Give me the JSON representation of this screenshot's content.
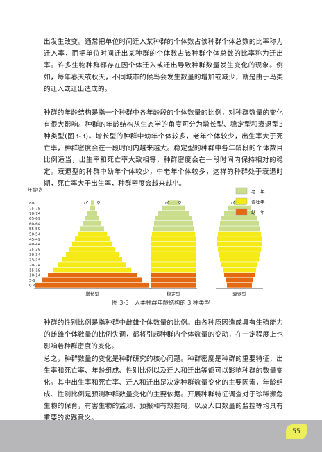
{
  "paragraphs": [
    "出发生改变。通常把单位时间迁入某种群的个体数占该种群个体总数的比率称为迁入率，而把单位时间迁出某种群的个体数占该种群个体总数的比率称为迁出率。许多生物种群都存在因个体迁入或迁出导致种群数量发生变化的现象。例如，每年春天或秋天，不同城市的候鸟会发生数量的增加或减少，就是由于鸟类的迁入或迁出造成的。",
    "种群的年龄结构是指一个种群中各年龄段的个体数量的比例，对种群数量的变化有很大影响。种群的年龄结构从生态学的角度可分为增长型、稳定型和衰退型3种类型(图3-3)。增长型的种群中幼年个体较多，老年个体较少，出生率大于死亡率，种群密度会在一段时间内越来越大。稳定型的种群中各年龄段的个体数目比例适当，出生率和死亡率大致相等，种群密度会在一段时间内保持相对的稳定。衰退型的种群中幼年个体较少，中老年个体较多，这样的种群处于衰退时期，死亡率大于出生率，种群密度会越来越小。",
    "种群的性别比例是指种群中雌雄个体数量的比例。由各种原因造成具有生殖能力的雌雄个体数量的比例失调，都将引起种群内个体数量的变动，在一定程度上也影响着种群密度的变化。",
    "总之，种群数量的变化是种群研究的核心问题。种群密度是种群的重要特征，出生率和死亡率、年龄组成、性别比例以及迁入和迁出等都可以影响种群的数量变化。其中出生率和死亡率、迁入和迁出是决定种群数量变化的主要因素，年龄组成、性别比例是预测种群数量变化的主要依据。开展种群特征调查对于珍稀濒危生物的保育，有害生物的监测、预报和有效控制，以及人口数量的监控等均具有重要的实践意义。"
  ],
  "figure": {
    "y_axis_label": "年龄/岁",
    "age_groups": [
      "80-",
      "75-79",
      "70-74",
      "65-69",
      "60-64",
      "55-59",
      "50-54",
      "45-49",
      "40-44",
      "35-39",
      "30-34",
      "25-29",
      "20-24",
      "15-19",
      "10-14",
      "5-9",
      "0-4"
    ],
    "sex_symbols": {
      "male": "♂",
      "female": "♀"
    },
    "legend": [
      {
        "label": "老　年",
        "color": "#c9dd8c"
      },
      {
        "label": "青壮年",
        "color": "#f5ea15"
      },
      {
        "label": "幼　年",
        "color": "#e36a12"
      }
    ],
    "pyramids": [
      {
        "label": "增长型",
        "widths": [
          2,
          4,
          7,
          10,
          13,
          17,
          21,
          25,
          29,
          33,
          38,
          43,
          49,
          56,
          64,
          72,
          82
        ]
      },
      {
        "label": "稳定型",
        "widths": [
          8,
          16,
          22,
          26,
          28,
          30,
          31,
          32,
          32,
          32,
          32,
          32,
          32,
          32,
          32,
          32,
          32
        ]
      },
      {
        "label": "衰退型",
        "widths": [
          8,
          16,
          22,
          26,
          28,
          30,
          31,
          32,
          32,
          31,
          30,
          28,
          26,
          24,
          22,
          20,
          18
        ]
      }
    ],
    "caption": "图 3-3　人类种群年龄结构的 3 种类型"
  },
  "page_number": "55"
}
